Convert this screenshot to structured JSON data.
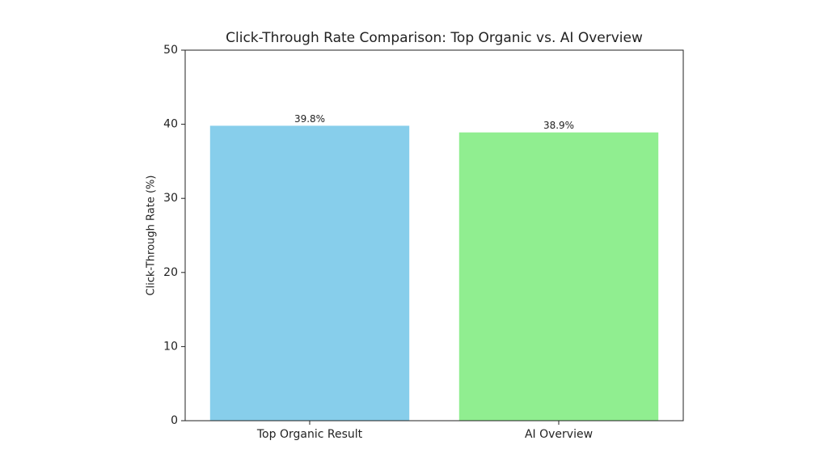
{
  "chart_data": {
    "type": "bar",
    "title": "Click-Through Rate Comparison: Top Organic vs. AI Overview",
    "y_label": "Click-Through Rate (%)",
    "categories": [
      "Top Organic Result",
      "AI Overview"
    ],
    "values": [
      39.8,
      38.9
    ],
    "value_labels": [
      "39.8%",
      "38.9%"
    ],
    "colors": [
      "#87ceeb",
      "#90ee90"
    ],
    "ylim": [
      0,
      50
    ],
    "yticks": [
      0,
      10,
      20,
      30,
      40,
      50
    ],
    "grid": false
  }
}
